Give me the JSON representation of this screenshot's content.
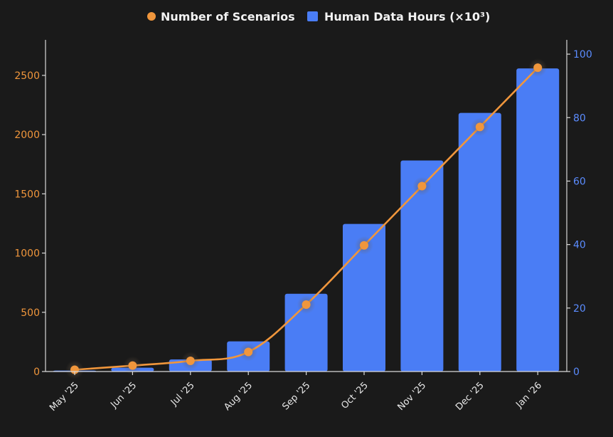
{
  "chart_data": {
    "type": "bar+line",
    "categories": [
      "May '25",
      "Jun '25",
      "Jul '25",
      "Aug '25",
      "Sep '25",
      "Oct '25",
      "Nov '25",
      "Dec '25",
      "Jan '26"
    ],
    "series": [
      {
        "name": "Human Data Hours (×10³)",
        "type": "bar",
        "axis": "right",
        "color": "#4a7df5",
        "values": [
          0.3,
          1.2,
          3.8,
          9.5,
          24.5,
          46.5,
          66.5,
          81.5,
          95.5
        ]
      },
      {
        "name": "Number of Scenarios",
        "type": "line",
        "axis": "left",
        "color": "#f0963c",
        "values": [
          15,
          50,
          90,
          165,
          565,
          1065,
          1565,
          2065,
          2565
        ]
      }
    ],
    "left_axis": {
      "range": [
        0,
        2800
      ],
      "ticks": [
        0,
        500,
        1000,
        1500,
        2000,
        2500
      ],
      "color": "#f0963c"
    },
    "right_axis": {
      "range": [
        0,
        104.5
      ],
      "ticks": [
        0,
        20,
        40,
        60,
        80,
        100
      ],
      "color": "#5b8cff"
    },
    "legend": {
      "placement": "top-center",
      "items": [
        "Number of Scenarios",
        "Human Data Hours (×10³)"
      ]
    },
    "title": "",
    "xlabel": "",
    "ylabel": ""
  }
}
